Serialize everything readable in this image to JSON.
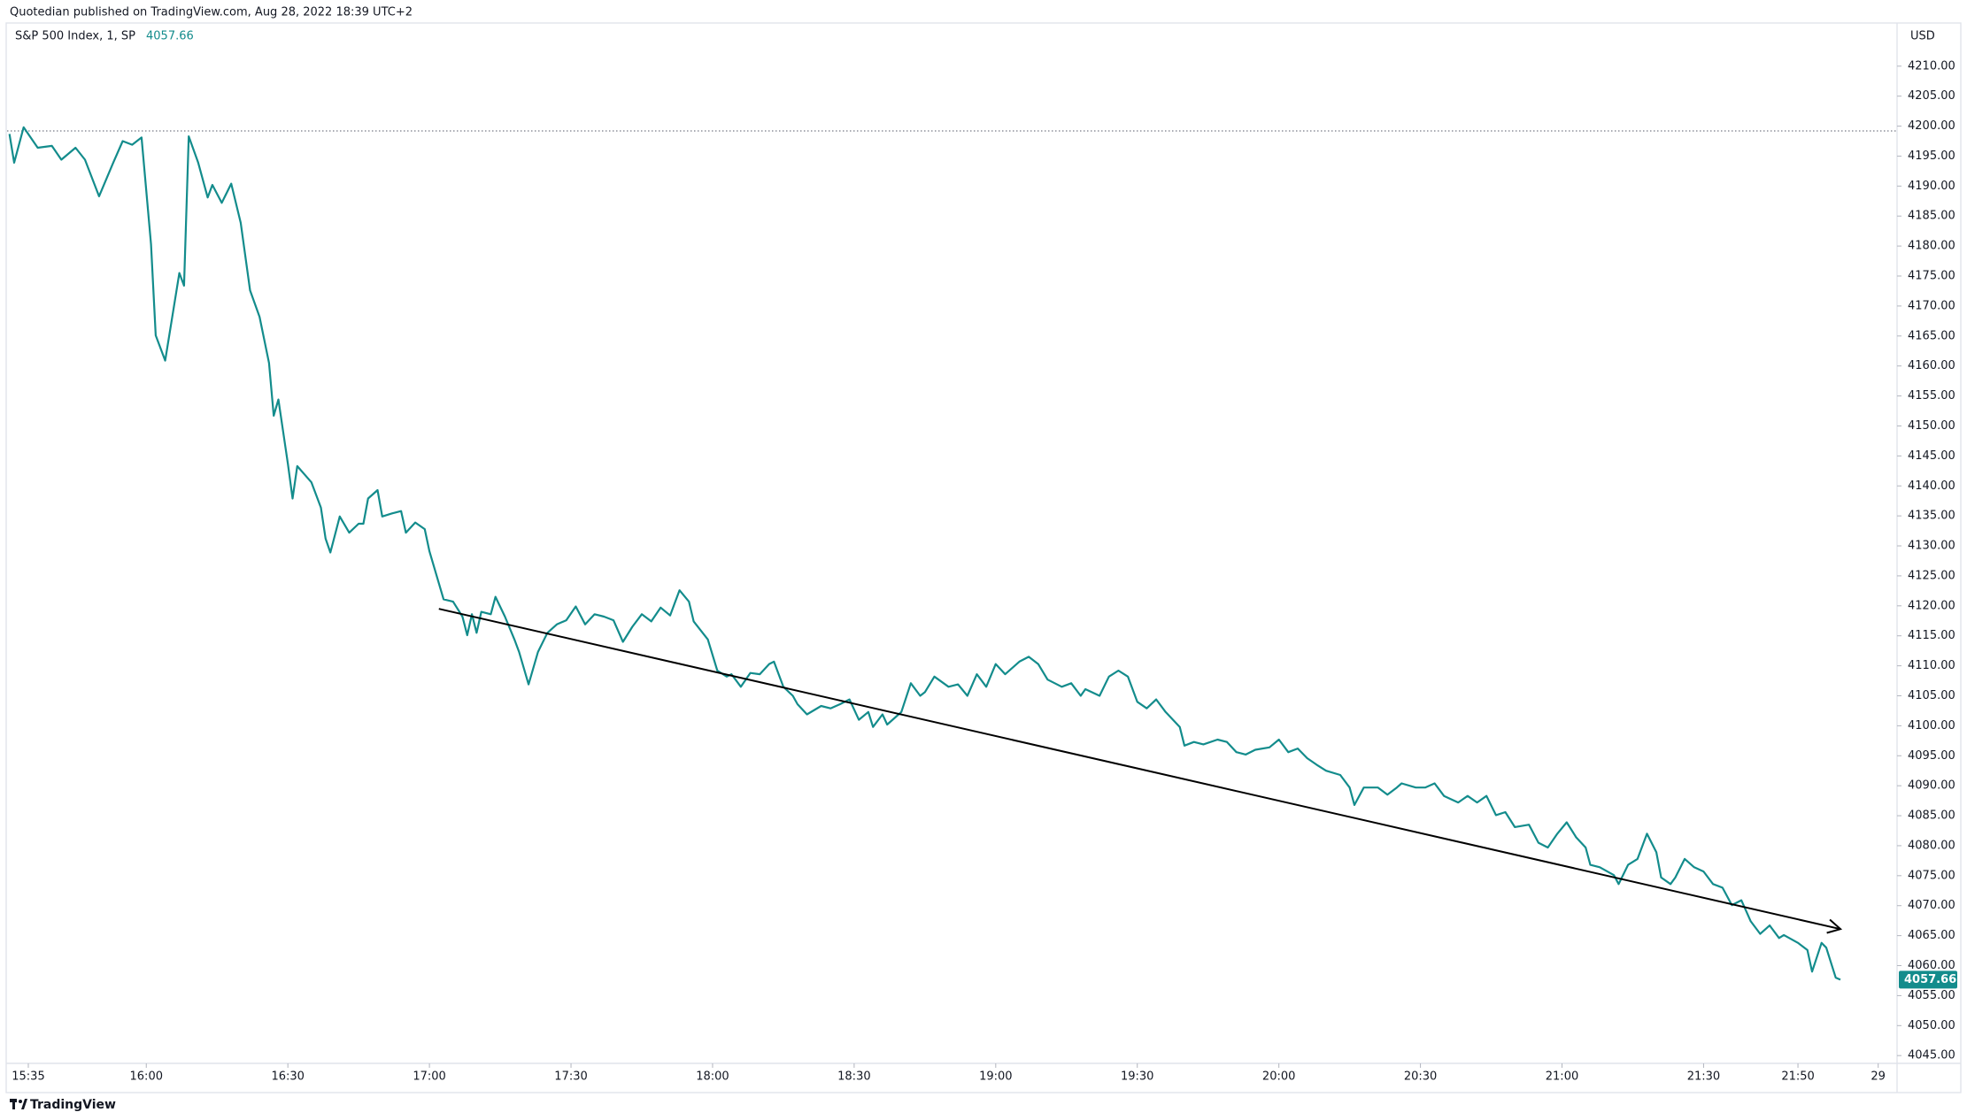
{
  "chart_data": {
    "type": "line",
    "attribution": "Quotedian published on TradingView.com, Aug 28, 2022 18:39 UTC+2",
    "currency": "USD",
    "brand": "TradingView",
    "series": [
      {
        "name": "S&P 500 Index, 1, SP",
        "color": "#138c8c",
        "x": [
          "15:31",
          "15:32",
          "15:34",
          "15:37",
          "15:40",
          "15:42",
          "15:45",
          "15:47",
          "15:50",
          "15:53",
          "15:55",
          "15:57",
          "15:59",
          "16:01",
          "16:02",
          "16:04",
          "16:07",
          "16:08",
          "16:09",
          "16:11",
          "16:13",
          "16:14",
          "16:16",
          "16:18",
          "16:20",
          "16:22",
          "16:24",
          "16:26",
          "16:27",
          "16:28",
          "16:30",
          "16:31",
          "16:32",
          "16:35",
          "16:37",
          "16:38",
          "16:39",
          "16:41",
          "16:43",
          "16:45",
          "16:46",
          "16:47",
          "16:49",
          "16:50",
          "16:52",
          "16:54",
          "16:55",
          "16:57",
          "16:59",
          "17:00",
          "17:03",
          "17:05",
          "17:07",
          "17:08",
          "17:09",
          "17:10",
          "17:11",
          "17:13",
          "17:14",
          "17:16",
          "17:18",
          "17:19",
          "17:21",
          "17:23",
          "17:25",
          "17:27",
          "17:29",
          "17:31",
          "17:33",
          "17:35",
          "17:37",
          "17:39",
          "17:41",
          "17:43",
          "17:45",
          "17:47",
          "17:49",
          "17:51",
          "17:53",
          "17:55",
          "17:56",
          "17:59",
          "18:01",
          "18:03",
          "18:04",
          "18:06",
          "18:08",
          "18:10",
          "18:12",
          "18:13",
          "18:15",
          "18:17",
          "18:18",
          "18:20",
          "18:23",
          "18:25",
          "18:27",
          "18:29",
          "18:31",
          "18:33",
          "18:34",
          "18:36",
          "18:37",
          "18:40",
          "18:42",
          "18:44",
          "18:45",
          "18:47",
          "18:50",
          "18:52",
          "18:54",
          "18:56",
          "18:58",
          "19:00",
          "19:02",
          "19:05",
          "19:07",
          "19:09",
          "19:11",
          "19:14",
          "19:16",
          "19:18",
          "19:19",
          "19:22",
          "19:24",
          "19:26",
          "19:28",
          "19:30",
          "19:32",
          "19:34",
          "19:36",
          "19:39",
          "19:40",
          "19:42",
          "19:44",
          "19:47",
          "19:49",
          "19:51",
          "19:53",
          "19:55",
          "19:58",
          "20:00",
          "20:02",
          "20:04",
          "20:06",
          "20:08",
          "20:10",
          "20:13",
          "20:15",
          "20:16",
          "20:18",
          "20:21",
          "20:23",
          "20:25",
          "20:26",
          "20:29",
          "20:31",
          "20:33",
          "20:35",
          "20:38",
          "20:40",
          "20:42",
          "20:44",
          "20:46",
          "20:48",
          "20:50",
          "20:53",
          "20:55",
          "20:57",
          "20:59",
          "21:01",
          "21:03",
          "21:05",
          "21:06",
          "21:08",
          "21:11",
          "21:12",
          "21:14",
          "21:16",
          "21:18",
          "21:20",
          "21:21",
          "21:23",
          "21:24",
          "21:26",
          "21:28",
          "21:30",
          "21:32",
          "21:34",
          "21:36",
          "21:38",
          "21:40",
          "21:42",
          "21:44",
          "21:46",
          "21:47",
          "21:50",
          "21:52",
          "21:53",
          "21:55",
          "21:56",
          "21:58",
          "21:59"
        ],
        "values": [
          4198.7,
          4193.9,
          4199.8,
          4196.4,
          4196.7,
          4194.4,
          4196.4,
          4194.4,
          4188.3,
          4193.9,
          4197.5,
          4196.9,
          4198.1,
          4180.3,
          4165.1,
          4160.9,
          4175.5,
          4173.4,
          4198.3,
          4193.9,
          4188.1,
          4190.2,
          4187.2,
          4190.4,
          4183.9,
          4172.6,
          4168.2,
          4160.5,
          4151.7,
          4154.4,
          4143.7,
          4137.9,
          4143.3,
          4140.6,
          4136.4,
          4131.2,
          4128.9,
          4134.9,
          4132.2,
          4133.7,
          4133.7,
          4137.9,
          4139.3,
          4134.9,
          4135.4,
          4135.8,
          4132.2,
          4133.9,
          4132.8,
          4129.1,
          4121.1,
          4120.7,
          4118.2,
          4115.1,
          4118.6,
          4115.5,
          4119.0,
          4118.6,
          4121.5,
          4118.2,
          4114.4,
          4112.3,
          4106.9,
          4112.3,
          4115.5,
          4116.9,
          4117.6,
          4119.9,
          4116.9,
          4118.6,
          4118.2,
          4117.6,
          4114.0,
          4116.5,
          4118.6,
          4117.4,
          4119.7,
          4118.4,
          4122.6,
          4120.7,
          4117.4,
          4114.4,
          4109.2,
          4108.2,
          4108.6,
          4106.5,
          4108.8,
          4108.6,
          4110.3,
          4110.7,
          4106.5,
          4105.0,
          4103.6,
          4101.9,
          4103.3,
          4102.9,
          4103.6,
          4104.4,
          4101.0,
          4102.3,
          4099.8,
          4101.9,
          4100.2,
          4102.3,
          4107.1,
          4105.0,
          4105.6,
          4108.2,
          4106.5,
          4106.9,
          4105.0,
          4108.6,
          4106.5,
          4110.3,
          4108.6,
          4110.7,
          4111.5,
          4110.3,
          4107.7,
          4106.5,
          4107.1,
          4105.0,
          4106.1,
          4105.0,
          4108.2,
          4109.2,
          4108.2,
          4104.0,
          4102.9,
          4104.4,
          4102.3,
          4099.8,
          4096.7,
          4097.3,
          4096.9,
          4097.7,
          4097.3,
          4095.6,
          4095.2,
          4096.0,
          4096.4,
          4097.7,
          4095.6,
          4096.2,
          4094.6,
          4093.5,
          4092.5,
          4091.8,
          4089.7,
          4086.8,
          4089.7,
          4089.7,
          4088.5,
          4089.7,
          4090.4,
          4089.7,
          4089.7,
          4090.4,
          4088.3,
          4087.2,
          4088.3,
          4087.2,
          4088.3,
          4085.1,
          4085.6,
          4083.1,
          4083.5,
          4080.5,
          4079.7,
          4082.0,
          4083.9,
          4081.4,
          4079.7,
          4076.8,
          4076.4,
          4075.1,
          4073.6,
          4076.8,
          4077.8,
          4082.0,
          4078.9,
          4074.7,
          4073.6,
          4074.7,
          4077.8,
          4076.4,
          4075.7,
          4073.6,
          4073.0,
          4070.1,
          4070.9,
          4067.4,
          4065.3,
          4066.7,
          4064.6,
          4065.1,
          4063.8,
          4062.6,
          4059.0,
          4063.8,
          4063.0,
          4058.0,
          4057.66
        ]
      }
    ],
    "reference_line": 4199.2,
    "trend_line": {
      "x": [
        "17:02",
        "21:59"
      ],
      "values": [
        4119.5,
        4066.1
      ],
      "color": "#000000"
    },
    "xlim": [
      "15:29",
      "22:11"
    ],
    "xticks": [
      {
        "value": "15:35",
        "label": "15:35"
      },
      "16:00",
      "16:30",
      "17:00",
      "17:30",
      "18:00",
      "18:30",
      "19:00",
      "19:30",
      "20:00",
      "20:30",
      "21:00",
      "21:30",
      "21:50",
      {
        "value": "22:07",
        "label": "29"
      }
    ],
    "ylim": [
      4043.7,
      4216.9
    ],
    "yticks": [
      {
        "value": 4045,
        "label": "4045.00"
      },
      {
        "value": 4050,
        "label": "4050.00"
      },
      {
        "value": 4055,
        "label": "4055.00"
      },
      {
        "value": 4060,
        "label": "4060.00"
      },
      {
        "value": 4065,
        "label": "4065.00"
      },
      {
        "value": 4070,
        "label": "4070.00"
      },
      {
        "value": 4075,
        "label": "4075.00"
      },
      {
        "value": 4080,
        "label": "4080.00"
      },
      {
        "value": 4085,
        "label": "4085.00"
      },
      {
        "value": 4090,
        "label": "4090.00"
      },
      {
        "value": 4095,
        "label": "4095.00"
      },
      {
        "value": 4100,
        "label": "4100.00"
      },
      {
        "value": 4105,
        "label": "4105.00"
      },
      {
        "value": 4110,
        "label": "4110.00"
      },
      {
        "value": 4115,
        "label": "4115.00"
      },
      {
        "value": 4120,
        "label": "4120.00"
      },
      {
        "value": 4125,
        "label": "4125.00"
      },
      {
        "value": 4130,
        "label": "4130.00"
      },
      {
        "value": 4135,
        "label": "4135.00"
      },
      {
        "value": 4140,
        "label": "4140.00"
      },
      {
        "value": 4145,
        "label": "4145.00"
      },
      {
        "value": 4150,
        "label": "4150.00"
      },
      {
        "value": 4155,
        "label": "4155.00"
      },
      {
        "value": 4160,
        "label": "4160.00"
      },
      {
        "value": 4165,
        "label": "4165.00"
      },
      {
        "value": 4170,
        "label": "4170.00"
      },
      {
        "value": 4175,
        "label": "4175.00"
      },
      {
        "value": 4180,
        "label": "4180.00"
      },
      {
        "value": 4185,
        "label": "4185.00"
      },
      {
        "value": 4190,
        "label": "4190.00"
      },
      {
        "value": 4195,
        "label": "4195.00"
      },
      {
        "value": 4200,
        "label": "4200.00"
      },
      {
        "value": 4205,
        "label": "4205.00"
      },
      {
        "value": 4210,
        "label": "4210.00"
      }
    ],
    "grid": false
  }
}
